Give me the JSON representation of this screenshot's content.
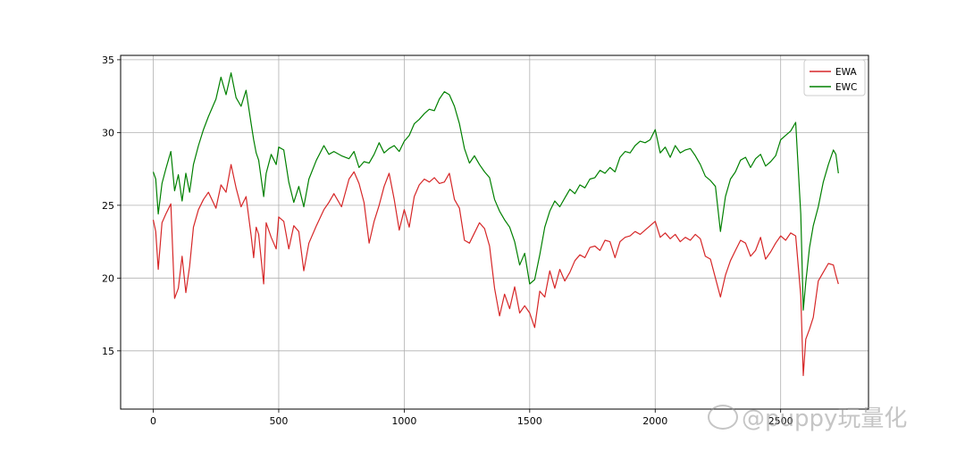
{
  "chart_data": {
    "type": "line",
    "title": "",
    "xlabel": "",
    "ylabel": "",
    "xlim": [
      -130,
      2850
    ],
    "ylim": [
      11.0,
      35.3
    ],
    "xticks": [
      0,
      500,
      1000,
      1500,
      2000,
      2500
    ],
    "yticks": [
      15,
      20,
      25,
      30,
      35
    ],
    "grid": true,
    "legend_position": "top-right",
    "series": [
      {
        "name": "EWA",
        "color": "#d62728",
        "x": [
          0,
          10,
          20,
          35,
          50,
          70,
          85,
          100,
          115,
          130,
          145,
          160,
          180,
          200,
          220,
          250,
          270,
          290,
          310,
          330,
          350,
          370,
          390,
          400,
          410,
          420,
          440,
          450,
          470,
          490,
          500,
          520,
          540,
          560,
          580,
          600,
          620,
          650,
          680,
          700,
          720,
          750,
          780,
          800,
          820,
          840,
          860,
          880,
          900,
          920,
          940,
          960,
          980,
          1000,
          1020,
          1040,
          1060,
          1080,
          1100,
          1120,
          1140,
          1160,
          1180,
          1200,
          1220,
          1240,
          1260,
          1280,
          1300,
          1320,
          1340,
          1360,
          1380,
          1400,
          1420,
          1440,
          1460,
          1480,
          1500,
          1520,
          1540,
          1560,
          1580,
          1600,
          1620,
          1640,
          1660,
          1680,
          1700,
          1720,
          1740,
          1760,
          1780,
          1800,
          1820,
          1840,
          1860,
          1880,
          1900,
          1920,
          1940,
          1960,
          1980,
          2000,
          2020,
          2040,
          2060,
          2080,
          2100,
          2120,
          2140,
          2160,
          2180,
          2200,
          2220,
          2240,
          2260,
          2280,
          2300,
          2320,
          2340,
          2360,
          2380,
          2400,
          2420,
          2440,
          2460,
          2480,
          2500,
          2520,
          2540,
          2560,
          2580,
          2590,
          2600,
          2615,
          2630,
          2650,
          2670,
          2690,
          2710,
          2720,
          2730
        ],
        "values": [
          24.0,
          23.2,
          20.6,
          23.8,
          24.4,
          25.1,
          18.6,
          19.3,
          21.5,
          19.0,
          20.8,
          23.5,
          24.7,
          25.4,
          25.9,
          24.8,
          26.4,
          25.9,
          27.8,
          26.2,
          24.9,
          25.6,
          22.9,
          21.4,
          23.5,
          23.0,
          19.6,
          23.8,
          22.8,
          22.0,
          24.2,
          23.9,
          22.0,
          23.6,
          23.2,
          20.5,
          22.4,
          23.6,
          24.7,
          25.2,
          25.8,
          24.9,
          26.8,
          27.3,
          26.5,
          25.2,
          22.4,
          23.9,
          25.0,
          26.3,
          27.2,
          25.4,
          23.3,
          24.7,
          23.5,
          25.6,
          26.4,
          26.8,
          26.6,
          26.9,
          26.5,
          26.6,
          27.2,
          25.4,
          24.8,
          22.6,
          22.4,
          23.1,
          23.8,
          23.4,
          22.2,
          19.3,
          17.4,
          18.9,
          17.9,
          19.4,
          17.6,
          18.1,
          17.6,
          16.6,
          19.1,
          18.7,
          20.5,
          19.3,
          20.6,
          19.8,
          20.4,
          21.2,
          21.6,
          21.4,
          22.1,
          22.2,
          21.9,
          22.6,
          22.5,
          21.4,
          22.5,
          22.8,
          22.9,
          23.2,
          23.0,
          23.3,
          23.6,
          23.9,
          22.8,
          23.1,
          22.7,
          23.0,
          22.5,
          22.8,
          22.6,
          23.0,
          22.7,
          21.5,
          21.3,
          20.0,
          18.7,
          20.2,
          21.2,
          21.9,
          22.6,
          22.4,
          21.5,
          21.9,
          22.8,
          21.3,
          21.8,
          22.4,
          22.9,
          22.6,
          23.1,
          22.9,
          18.8,
          13.3,
          15.8,
          16.5,
          17.3,
          19.8,
          20.4,
          21.0,
          20.9,
          20.2,
          19.6
        ]
      },
      {
        "name": "EWC",
        "color": "#008000",
        "x": [
          0,
          10,
          20,
          35,
          50,
          70,
          85,
          100,
          115,
          130,
          145,
          160,
          180,
          200,
          220,
          250,
          270,
          290,
          310,
          330,
          350,
          370,
          390,
          400,
          410,
          420,
          440,
          450,
          470,
          490,
          500,
          520,
          540,
          560,
          580,
          600,
          620,
          650,
          680,
          700,
          720,
          750,
          780,
          800,
          820,
          840,
          860,
          880,
          900,
          920,
          940,
          960,
          980,
          1000,
          1020,
          1040,
          1060,
          1080,
          1100,
          1120,
          1140,
          1160,
          1180,
          1200,
          1220,
          1240,
          1260,
          1280,
          1300,
          1320,
          1340,
          1360,
          1380,
          1400,
          1420,
          1440,
          1460,
          1480,
          1500,
          1520,
          1540,
          1560,
          1580,
          1600,
          1620,
          1640,
          1660,
          1680,
          1700,
          1720,
          1740,
          1760,
          1780,
          1800,
          1820,
          1840,
          1860,
          1880,
          1900,
          1920,
          1940,
          1960,
          1980,
          2000,
          2020,
          2040,
          2060,
          2080,
          2100,
          2120,
          2140,
          2160,
          2180,
          2200,
          2220,
          2240,
          2260,
          2280,
          2300,
          2320,
          2340,
          2360,
          2380,
          2400,
          2420,
          2440,
          2460,
          2480,
          2500,
          2520,
          2540,
          2560,
          2580,
          2590,
          2600,
          2615,
          2630,
          2650,
          2670,
          2690,
          2710,
          2720,
          2730
        ],
        "values": [
          27.3,
          26.8,
          24.4,
          26.5,
          27.5,
          28.7,
          26.0,
          27.1,
          25.3,
          27.2,
          25.9,
          27.8,
          29.1,
          30.2,
          31.1,
          32.3,
          33.8,
          32.6,
          34.1,
          32.4,
          31.8,
          32.9,
          30.6,
          29.5,
          28.6,
          28.1,
          25.6,
          27.2,
          28.5,
          27.8,
          29.0,
          28.8,
          26.6,
          25.2,
          26.3,
          24.9,
          26.8,
          28.1,
          29.1,
          28.5,
          28.7,
          28.4,
          28.2,
          28.7,
          27.6,
          28.0,
          27.9,
          28.5,
          29.3,
          28.6,
          28.9,
          29.1,
          28.7,
          29.4,
          29.8,
          30.6,
          30.9,
          31.3,
          31.6,
          31.5,
          32.3,
          32.8,
          32.6,
          31.8,
          30.6,
          28.9,
          27.9,
          28.4,
          27.8,
          27.3,
          26.9,
          25.4,
          24.6,
          24.0,
          23.5,
          22.5,
          20.9,
          21.7,
          19.6,
          19.9,
          21.6,
          23.5,
          24.6,
          25.3,
          24.9,
          25.5,
          26.1,
          25.8,
          26.4,
          26.2,
          26.8,
          26.9,
          27.4,
          27.2,
          27.6,
          27.3,
          28.3,
          28.7,
          28.6,
          29.1,
          29.4,
          29.3,
          29.5,
          30.2,
          28.6,
          29.0,
          28.3,
          29.1,
          28.6,
          28.8,
          28.9,
          28.4,
          27.8,
          27.0,
          26.7,
          26.3,
          23.2,
          25.6,
          26.8,
          27.3,
          28.1,
          28.3,
          27.6,
          28.2,
          28.5,
          27.7,
          28.0,
          28.4,
          29.5,
          29.8,
          30.1,
          30.7,
          24.4,
          17.8,
          19.7,
          22.1,
          23.6,
          24.9,
          26.6,
          27.8,
          28.8,
          28.5,
          27.2
        ]
      }
    ]
  },
  "watermark": {
    "text": "@puppy玩量化"
  }
}
